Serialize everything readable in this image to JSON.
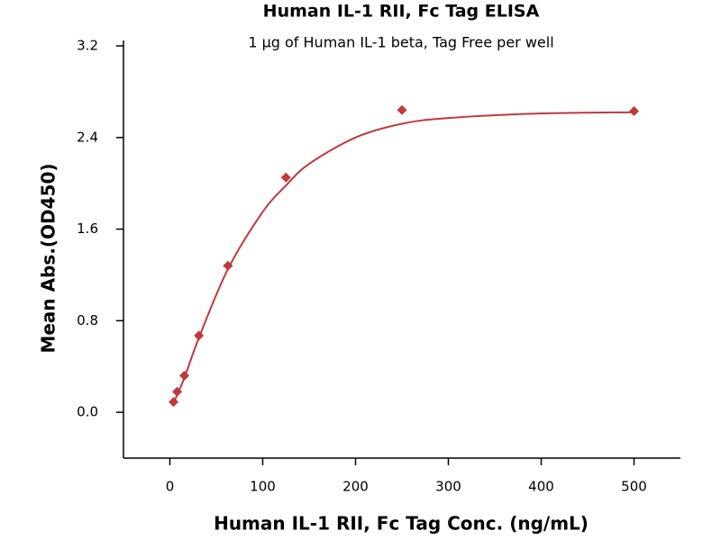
{
  "chart_data": {
    "type": "scatter",
    "title": "Human IL-1 RII, Fc Tag ELISA",
    "subtitle": "1 μg of Human IL-1 beta, Tag Free per well",
    "x_label": "Human IL-1 RII, Fc Tag Conc. (ng/mL)",
    "y_label": "Mean Abs.(OD450)",
    "xlim": [
      -50,
      550
    ],
    "xticks": [
      0,
      100,
      200,
      300,
      400,
      500
    ],
    "ylim": [
      -0.4,
      3.2
    ],
    "yticks": [
      {
        "value": 0,
        "label": "0.0"
      },
      0.8,
      1.6,
      2.4,
      3.2
    ],
    "color": "#c0393b",
    "x": [
      3.9,
      7.8,
      15.6,
      31.25,
      62.5,
      125,
      250,
      500
    ],
    "values": [
      0.09,
      0.18,
      0.32,
      0.67,
      1.28,
      2.05,
      2.64,
      2.63
    ],
    "fit": {
      "x": [
        3.9,
        15.6,
        31.25,
        62.5,
        100,
        125,
        150,
        200,
        250,
        300,
        400,
        500
      ],
      "values": [
        0.08,
        0.3,
        0.65,
        1.25,
        1.75,
        1.98,
        2.17,
        2.4,
        2.52,
        2.57,
        2.61,
        2.62
      ]
    }
  }
}
